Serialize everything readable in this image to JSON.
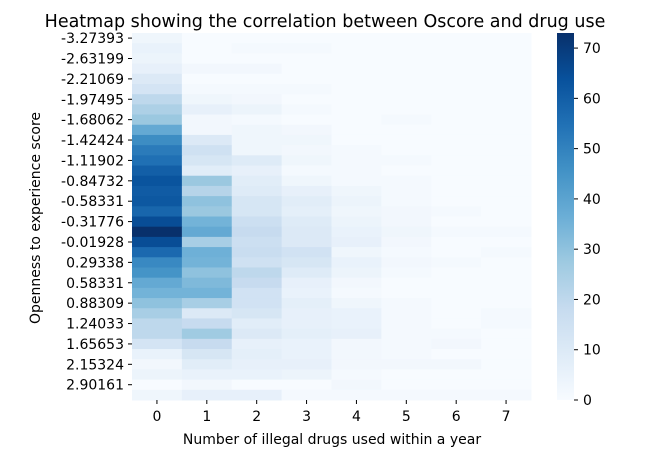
{
  "chart_data": {
    "type": "heatmap",
    "title": "Heatmap showing the correlation between Oscore and drug use",
    "xlabel": "Number of illegal drugs used within a year",
    "ylabel": "Openness to experience score",
    "x_categories": [
      "0",
      "1",
      "2",
      "3",
      "4",
      "5",
      "6",
      "7"
    ],
    "y_tick_labels": [
      "-3.27393",
      "-2.63199",
      "-2.21069",
      "-1.97495",
      "-1.68062",
      "-1.42424",
      "-1.11902",
      "-0.84732",
      "-0.58331",
      "-0.31776",
      "-0.01928",
      "0.29338",
      "0.58331",
      "0.88309",
      "1.24033",
      "1.65653",
      "2.15324",
      "2.90161"
    ],
    "rows_per_tick": 2,
    "values": [
      [
        3,
        0,
        0,
        0,
        0,
        0,
        0,
        0
      ],
      [
        5,
        0,
        1,
        1,
        0,
        0,
        0,
        0
      ],
      [
        4,
        0,
        0,
        0,
        0,
        0,
        0,
        0
      ],
      [
        6,
        2,
        2,
        0,
        0,
        0,
        0,
        0
      ],
      [
        10,
        0,
        0,
        0,
        0,
        0,
        0,
        0
      ],
      [
        13,
        1,
        1,
        1,
        0,
        0,
        0,
        0
      ],
      [
        20,
        3,
        2,
        0,
        0,
        0,
        0,
        0
      ],
      [
        24,
        6,
        4,
        1,
        0,
        0,
        0,
        0
      ],
      [
        28,
        2,
        1,
        0,
        0,
        1,
        0,
        0
      ],
      [
        38,
        2,
        3,
        2,
        0,
        0,
        0,
        0
      ],
      [
        47,
        10,
        3,
        3,
        0,
        0,
        0,
        0
      ],
      [
        52,
        15,
        3,
        2,
        1,
        0,
        0,
        0
      ],
      [
        55,
        12,
        9,
        3,
        1,
        1,
        0,
        0
      ],
      [
        60,
        8,
        6,
        1,
        1,
        0,
        0,
        0
      ],
      [
        63,
        28,
        8,
        3,
        1,
        1,
        0,
        0
      ],
      [
        61,
        22,
        9,
        6,
        3,
        1,
        0,
        0
      ],
      [
        62,
        30,
        12,
        8,
        4,
        1,
        0,
        0
      ],
      [
        58,
        28,
        12,
        7,
        3,
        2,
        1,
        0
      ],
      [
        65,
        35,
        16,
        9,
        4,
        2,
        0,
        0
      ],
      [
        73,
        38,
        18,
        10,
        5,
        3,
        1,
        1
      ],
      [
        65,
        25,
        16,
        10,
        6,
        2,
        0,
        0
      ],
      [
        57,
        36,
        17,
        14,
        3,
        1,
        0,
        1
      ],
      [
        48,
        35,
        15,
        12,
        5,
        2,
        1,
        0
      ],
      [
        45,
        30,
        20,
        9,
        4,
        1,
        0,
        0
      ],
      [
        38,
        33,
        18,
        6,
        2,
        0,
        0,
        0
      ],
      [
        35,
        35,
        14,
        5,
        1,
        0,
        0,
        0
      ],
      [
        30,
        25,
        14,
        7,
        3,
        1,
        0,
        0
      ],
      [
        25,
        10,
        12,
        6,
        5,
        1,
        0,
        1
      ],
      [
        20,
        18,
        8,
        6,
        5,
        1,
        0,
        1
      ],
      [
        20,
        27,
        10,
        7,
        6,
        1,
        1,
        0
      ],
      [
        13,
        18,
        6,
        5,
        2,
        1,
        2,
        0
      ],
      [
        5,
        12,
        7,
        5,
        2,
        1,
        0,
        0
      ],
      [
        2,
        8,
        6,
        6,
        2,
        2,
        2,
        0
      ],
      [
        4,
        5,
        5,
        4,
        1,
        0,
        0,
        0
      ],
      [
        0,
        2,
        0,
        0,
        2,
        0,
        0,
        0
      ],
      [
        3,
        6,
        6,
        1,
        1,
        1,
        1,
        1
      ]
    ],
    "colorbar": {
      "min": 0,
      "max": 73,
      "ticks": [
        0,
        10,
        20,
        30,
        40,
        50,
        60,
        70
      ],
      "tick_labels": [
        "0",
        "10",
        "20",
        "30",
        "40",
        "50",
        "60",
        "70"
      ],
      "colormap": "Blues",
      "color_stops": [
        "#f7fbff",
        "#deebf7",
        "#c6dbef",
        "#9ecae1",
        "#6baed6",
        "#4292c6",
        "#2171b5",
        "#08519c",
        "#08306b"
      ]
    },
    "grid": false,
    "legend": "colorbar-right"
  }
}
